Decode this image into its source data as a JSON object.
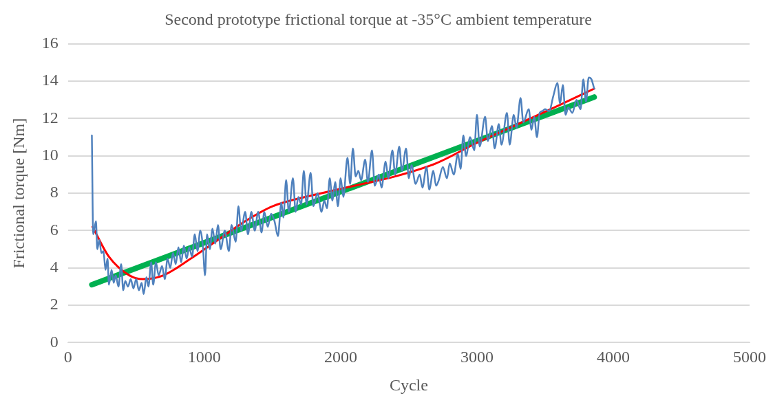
{
  "chart_data": {
    "type": "line",
    "title": "Second prototype frictional torque at -35°C ambient temperature",
    "xlabel": "Cycle",
    "ylabel": "Frictional torque [Nm]",
    "xlim": [
      0,
      5000
    ],
    "xticks": [
      0,
      1000,
      2000,
      3000,
      4000,
      5000
    ],
    "ylim": [
      0,
      16
    ],
    "yticks": [
      0,
      2,
      4,
      6,
      8,
      10,
      12,
      14,
      16
    ],
    "grid": "y",
    "legend": false,
    "marker": "none",
    "line_style": "solid",
    "series": [
      {
        "color": "#4f81bd",
        "x": [
          175,
          185,
          205,
          215,
          230,
          245,
          260,
          275,
          290,
          300,
          320,
          335,
          350,
          370,
          390,
          405,
          420,
          440,
          460,
          480,
          500,
          520,
          540,
          555,
          575,
          590,
          610,
          625,
          645,
          665,
          690,
          710,
          730,
          750,
          770,
          790,
          810,
          830,
          850,
          870,
          890,
          910,
          930,
          950,
          970,
          990,
          1005,
          1020,
          1040,
          1060,
          1080,
          1100,
          1120,
          1150,
          1180,
          1200,
          1230,
          1250,
          1270,
          1300,
          1320,
          1345,
          1370,
          1395,
          1420,
          1440,
          1465,
          1490,
          1515,
          1540,
          1565,
          1580,
          1600,
          1620,
          1650,
          1670,
          1690,
          1710,
          1730,
          1750,
          1780,
          1800,
          1830,
          1860,
          1880,
          1900,
          1920,
          1940,
          1960,
          1980,
          2000,
          2020,
          2050,
          2070,
          2090,
          2110,
          2130,
          2150,
          2180,
          2200,
          2230,
          2250,
          2280,
          2300,
          2330,
          2350,
          2380,
          2400,
          2430,
          2450,
          2480,
          2500,
          2520,
          2550,
          2580,
          2600,
          2630,
          2650,
          2680,
          2700,
          2720,
          2750,
          2780,
          2800,
          2830,
          2860,
          2880,
          2900,
          2920,
          2950,
          2980,
          3000,
          3020,
          3060,
          3080,
          3110,
          3130,
          3160,
          3180,
          3220,
          3240,
          3270,
          3290,
          3320,
          3340,
          3380,
          3400,
          3420,
          3440,
          3460,
          3480,
          3500,
          3530,
          3560,
          3590,
          3610,
          3630,
          3650,
          3670,
          3700,
          3730,
          3760,
          3780,
          3800,
          3820,
          3840,
          3860
        ],
        "values": [
          11.1,
          5.8,
          6.5,
          5.0,
          5.5,
          4.8,
          4.9,
          3.9,
          4.5,
          3.1,
          3.9,
          3.2,
          3.6,
          3.0,
          4.2,
          2.8,
          3.3,
          3.0,
          3.4,
          2.9,
          3.4,
          2.8,
          3.2,
          2.6,
          3.5,
          3.0,
          4.3,
          3.1,
          4.3,
          3.6,
          4.1,
          3.4,
          4.5,
          4.0,
          4.8,
          4.2,
          5.1,
          4.3,
          5.2,
          4.5,
          5.1,
          4.6,
          5.8,
          4.9,
          6.0,
          5.1,
          3.6,
          5.8,
          5.0,
          6.1,
          5.3,
          6.3,
          5.0,
          6.0,
          4.9,
          6.3,
          5.4,
          7.3,
          6.0,
          7.0,
          5.8,
          7.0,
          6.0,
          7.0,
          5.9,
          7.0,
          6.2,
          6.9,
          6.5,
          5.7,
          7.5,
          6.7,
          8.7,
          7.0,
          8.8,
          7.0,
          7.8,
          7.4,
          9.2,
          7.4,
          9.1,
          7.3,
          8.0,
          7.0,
          7.6,
          7.2,
          8.8,
          7.6,
          8.6,
          7.3,
          8.8,
          7.8,
          9.9,
          8.5,
          10.4,
          8.9,
          9.2,
          8.7,
          9.8,
          8.6,
          10.3,
          8.4,
          9.0,
          8.3,
          9.7,
          8.8,
          10.3,
          9.0,
          10.5,
          9.2,
          10.4,
          8.8,
          9.5,
          8.5,
          9.0,
          8.3,
          9.4,
          8.2,
          9.2,
          8.4,
          8.7,
          9.4,
          8.8,
          9.6,
          9.0,
          10.1,
          9.3,
          11.1,
          10.0,
          11.0,
          10.3,
          12.2,
          10.5,
          12.1,
          10.8,
          11.6,
          10.4,
          11.7,
          10.6,
          12.3,
          10.6,
          12.2,
          11.5,
          13.1,
          11.8,
          12.5,
          11.4,
          12.1,
          11.0,
          12.3,
          12.4,
          12.5,
          12.4,
          13.2,
          13.9,
          12.8,
          13.8,
          12.2,
          12.6,
          12.3,
          13.0,
          12.5,
          14.1,
          12.9,
          14.2,
          14.1,
          13.6
        ]
      },
      {
        "color": "#ff0000",
        "x": [
          180,
          300,
          450,
          550,
          700,
          900,
          1100,
          1300,
          1500,
          1800,
          2100,
          2400,
          2700,
          3000,
          3300,
          3600,
          3860
        ],
        "values": [
          6.2,
          4.6,
          3.6,
          3.4,
          3.6,
          4.5,
          5.5,
          6.5,
          7.3,
          7.9,
          8.4,
          8.9,
          9.6,
          10.7,
          11.7,
          12.7,
          13.6
        ]
      },
      {
        "color": "#00b050",
        "x": [
          175,
          3860
        ],
        "values": [
          3.1,
          13.15
        ]
      }
    ]
  }
}
